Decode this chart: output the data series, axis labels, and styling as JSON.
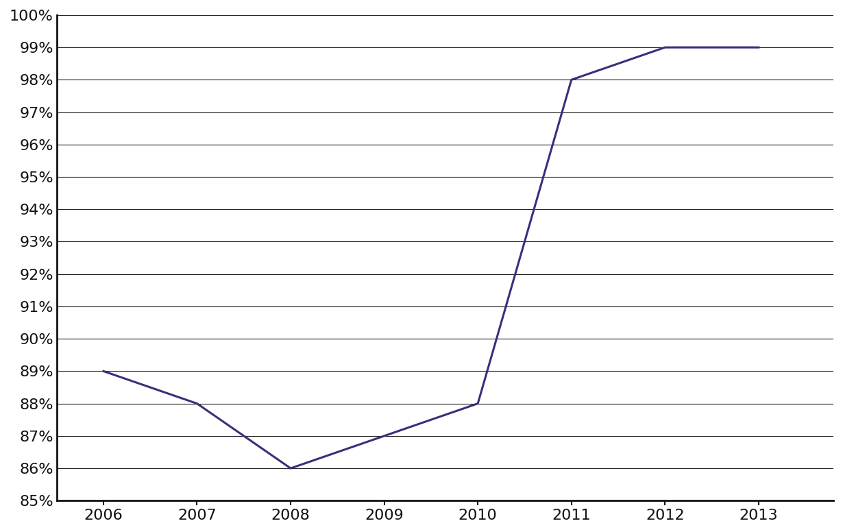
{
  "x": [
    2006,
    2007,
    2008,
    2009,
    2010,
    2011,
    2012,
    2013
  ],
  "y": [
    0.89,
    0.88,
    0.86,
    0.87,
    0.88,
    0.98,
    0.99,
    0.99
  ],
  "line_color": "#3d2d7a",
  "line_width": 2.2,
  "ylim_min": 0.85,
  "ylim_max": 1.0,
  "ytick_step": 0.01,
  "background_color": "#ffffff",
  "grid_color": "#222222",
  "spine_color": "#111111",
  "tick_label_color": "#111111",
  "tick_fontsize": 16,
  "xlim_left": 2005.5,
  "xlim_right": 2013.8
}
